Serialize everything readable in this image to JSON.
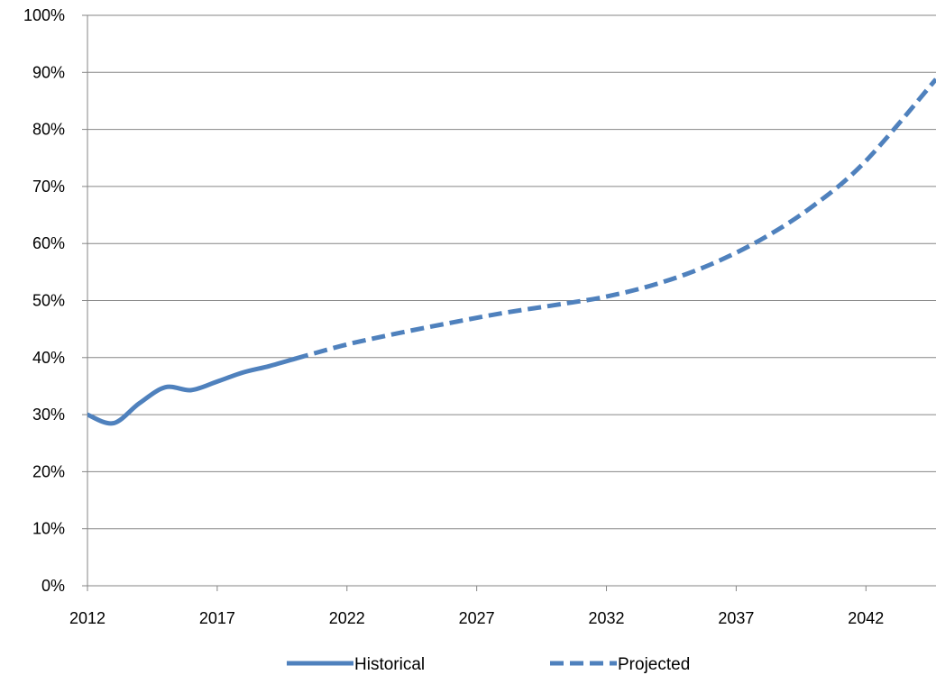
{
  "chart_data": {
    "type": "line",
    "title": "",
    "xlabel": "",
    "ylabel": "",
    "xlim": [
      2012,
      2044.7
    ],
    "ylim": [
      0,
      100
    ],
    "y_unit": "%",
    "y_ticks": [
      0,
      10,
      20,
      30,
      40,
      50,
      60,
      70,
      80,
      90,
      100
    ],
    "y_tick_labels": [
      "0%",
      "10%",
      "20%",
      "30%",
      "40%",
      "50%",
      "60%",
      "70%",
      "80%",
      "90%",
      "100%"
    ],
    "x_ticks": [
      2012,
      2017,
      2022,
      2027,
      2032,
      2037,
      2042
    ],
    "x_tick_labels": [
      "2012",
      "2017",
      "2022",
      "2027",
      "2032",
      "2037",
      "2042"
    ],
    "grid": "horizontal",
    "legend_position": "bottom",
    "series": [
      {
        "name": "Historical",
        "style": "solid",
        "color": "#4F81BD",
        "x": [
          2012,
          2013,
          2014,
          2015,
          2016,
          2017,
          2018,
          2019,
          2020
        ],
        "y": [
          30,
          28.5,
          32,
          34.8,
          34.3,
          35.8,
          37.4,
          38.5,
          39.8
        ]
      },
      {
        "name": "Projected",
        "style": "dashed",
        "color": "#4F81BD",
        "x": [
          2020,
          2022,
          2024,
          2026,
          2028,
          2030,
          2032,
          2034,
          2036,
          2038,
          2040,
          2042,
          2044.7
        ],
        "y": [
          39.8,
          42.3,
          44.3,
          46.1,
          47.8,
          49.2,
          50.7,
          53,
          56.3,
          60.8,
          66.7,
          74.5,
          88.8
        ]
      }
    ]
  }
}
